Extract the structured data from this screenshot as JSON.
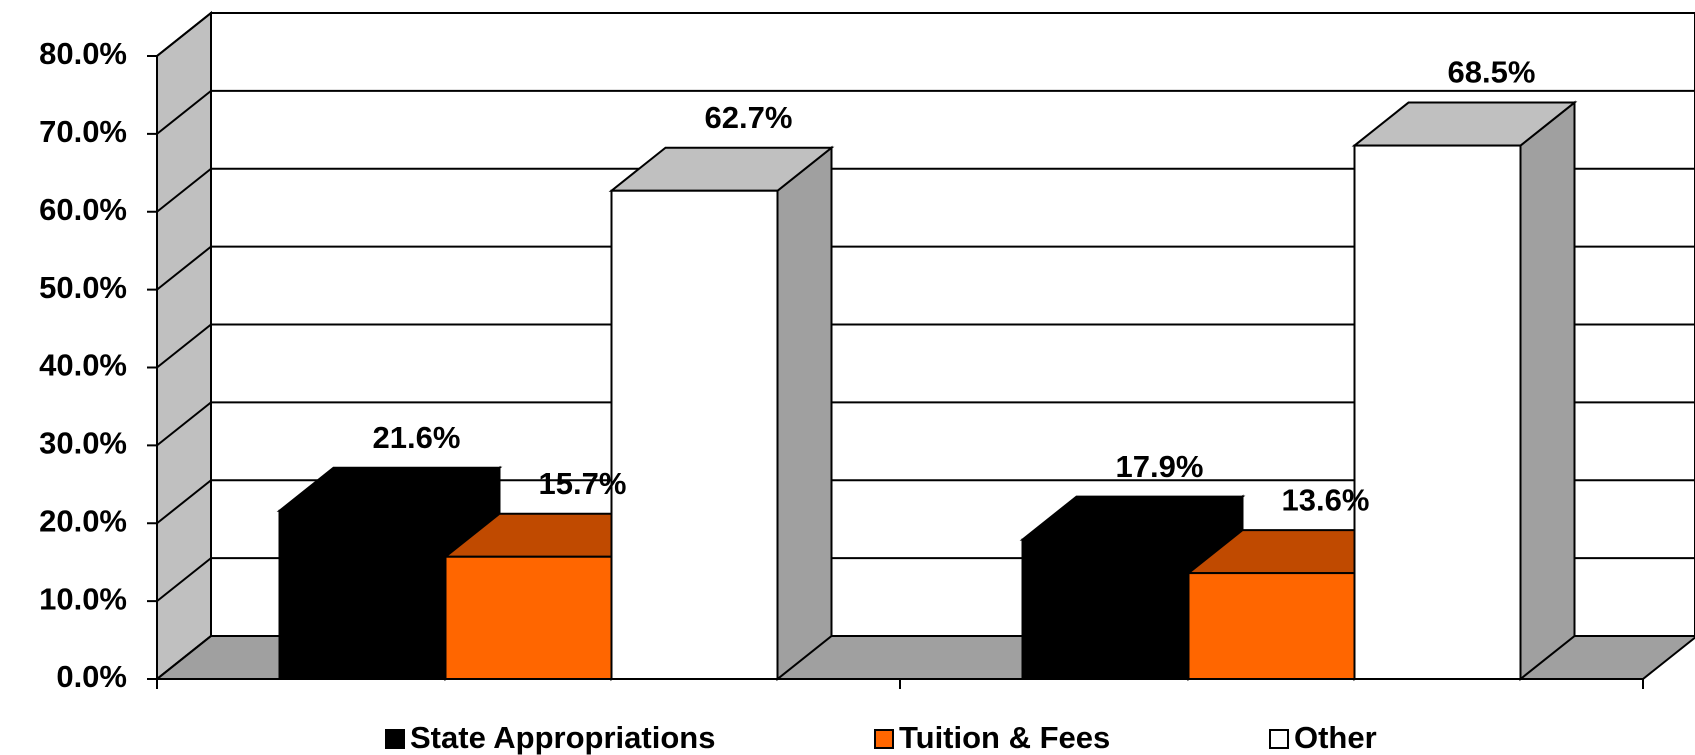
{
  "chart_data": {
    "type": "bar3d",
    "categories": [
      null,
      null
    ],
    "series": [
      {
        "name": "State Appropriations",
        "color": "#000000",
        "top_color": "#000000",
        "side_color": "#000000",
        "values": [
          21.6,
          17.9
        ],
        "value_labels": [
          "21.6%",
          "17.9%"
        ]
      },
      {
        "name": "Tuition & Fees",
        "color": "#ff6600",
        "top_color": "#c04a00",
        "side_color": "#c04a00",
        "values": [
          15.7,
          13.6
        ],
        "value_labels": [
          "15.7%",
          "13.6%"
        ]
      },
      {
        "name": "Other",
        "color": "#ffffff",
        "top_color": "#c0c0c0",
        "side_color": "#a0a0a0",
        "values": [
          62.7,
          68.5
        ],
        "value_labels": [
          "62.7%",
          "68.5%"
        ]
      }
    ],
    "ylim": [
      0,
      80
    ],
    "yticks": [
      {
        "value": 0,
        "label": "0.0%"
      },
      {
        "value": 10,
        "label": "10.0%"
      },
      {
        "value": 20,
        "label": "20.0%"
      },
      {
        "value": 30,
        "label": "30.0%"
      },
      {
        "value": 40,
        "label": "40.0%"
      },
      {
        "value": 50,
        "label": "50.0%"
      },
      {
        "value": 60,
        "label": "60.0%"
      },
      {
        "value": 70,
        "label": "70.0%"
      },
      {
        "value": 80,
        "label": "80.0%"
      }
    ],
    "grid": true,
    "legend": "bottom"
  }
}
